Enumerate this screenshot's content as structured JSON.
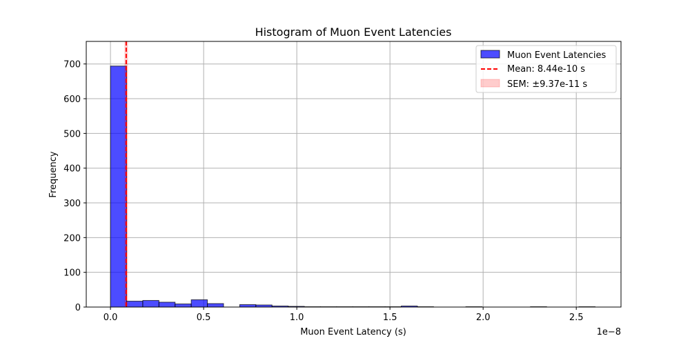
{
  "chart_data": {
    "type": "bar",
    "title": "Histogram of Muon Event Latencies",
    "xlabel": "Muon Event Latency (s)",
    "ylabel": "Frequency",
    "x_offset_label": "1e−8",
    "xlim": [
      -0.13,
      2.74
    ],
    "ylim": [
      0,
      765
    ],
    "xticks": [
      0.0,
      0.5,
      1.0,
      1.5,
      2.0,
      2.5
    ],
    "xtick_labels": [
      "0.0",
      "0.5",
      "1.0",
      "1.5",
      "2.0",
      "2.5"
    ],
    "yticks": [
      0,
      100,
      200,
      300,
      400,
      500,
      600,
      700
    ],
    "ytick_labels": [
      "0",
      "100",
      "200",
      "300",
      "400",
      "500",
      "600",
      "700"
    ],
    "grid": true,
    "legend_position": "top-right",
    "bins": {
      "start": 0.0,
      "width": 0.0867,
      "counts": [
        694,
        17,
        19,
        14,
        9,
        21,
        10,
        0,
        7,
        6,
        3,
        2,
        1,
        1,
        1,
        1,
        1,
        1,
        3,
        1,
        0,
        0,
        1,
        0,
        0,
        0,
        1,
        0,
        0,
        1
      ]
    },
    "series": [
      {
        "name": "Muon Event Latencies",
        "kind": "histogram",
        "color": "#0000ff",
        "edgecolor": "#000000"
      },
      {
        "name": "Mean: 8.44e-10 s",
        "kind": "vline",
        "value": 0.0844,
        "color": "#ff0000"
      },
      {
        "name": "SEM: ±9.37e-11 s",
        "kind": "span",
        "from": 0.07503,
        "to": 0.09377,
        "color": "#ff0000"
      }
    ]
  }
}
